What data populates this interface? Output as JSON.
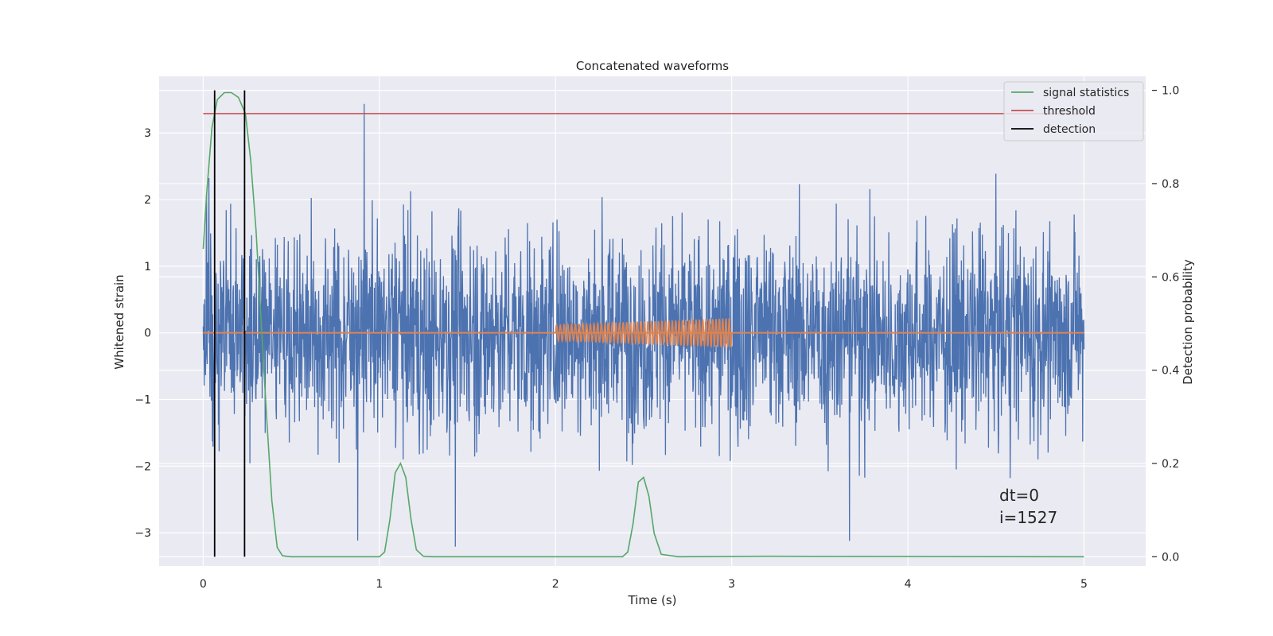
{
  "chart_data": {
    "type": "line",
    "title": "Concatenated waveforms",
    "xlabel": "Time (s)",
    "ylabel_left": "Whitened strain",
    "ylabel_right": "Detection probability",
    "xlim": [
      -0.25,
      5.35
    ],
    "ylim_left": [
      -3.5,
      3.85
    ],
    "ylim_right": [
      -0.02,
      1.03
    ],
    "x_ticks": [
      0,
      1,
      2,
      3,
      4,
      5
    ],
    "x_tick_labels": [
      "0",
      "1",
      "2",
      "3",
      "4",
      "5"
    ],
    "y_ticks_left": [
      -3,
      -2,
      -1,
      0,
      1,
      2,
      3
    ],
    "y_tick_labels_left": [
      "−3",
      "−2",
      "−1",
      "0",
      "1",
      "2",
      "3"
    ],
    "y_ticks_right": [
      0.0,
      0.2,
      0.4,
      0.6,
      0.8,
      1.0
    ],
    "y_tick_labels_right": [
      "0.0",
      "0.2",
      "0.4",
      "0.6",
      "0.8",
      "1.0"
    ],
    "grid": true,
    "legend_placement": "top-right",
    "legend": [
      "signal statistics",
      "threshold",
      "detection"
    ],
    "annotation": [
      "dt=0",
      "i=1527"
    ],
    "noise_series": {
      "axis": "left",
      "color": "#4c72b0",
      "x_range": [
        0,
        5
      ],
      "envelope_approx": [
        -3.4,
        3.5
      ]
    },
    "injected_signal": {
      "axis": "left",
      "color": "#dd8452",
      "baseline": 0,
      "chirp_x_range": [
        2.0,
        3.0
      ],
      "amplitude_start": 0.12,
      "amplitude_end": 0.22
    },
    "signal_statistics": {
      "axis": "right",
      "color": "#55a868",
      "x": [
        0.0,
        0.02,
        0.05,
        0.08,
        0.12,
        0.16,
        0.2,
        0.24,
        0.27,
        0.3,
        0.33,
        0.36,
        0.39,
        0.42,
        0.45,
        0.5,
        1.0,
        1.03,
        1.06,
        1.09,
        1.12,
        1.15,
        1.18,
        1.21,
        1.25,
        1.3,
        2.38,
        2.41,
        2.44,
        2.47,
        2.5,
        2.53,
        2.56,
        2.6,
        2.7,
        3.2,
        5.0
      ],
      "y": [
        0.66,
        0.78,
        0.92,
        0.98,
        0.995,
        0.995,
        0.985,
        0.95,
        0.85,
        0.7,
        0.5,
        0.3,
        0.12,
        0.02,
        0.002,
        0.0,
        0.0,
        0.01,
        0.08,
        0.18,
        0.2,
        0.17,
        0.08,
        0.015,
        0.001,
        0.0,
        0.0,
        0.01,
        0.07,
        0.16,
        0.17,
        0.13,
        0.05,
        0.005,
        0.0,
        0.001,
        0.0
      ]
    },
    "threshold": {
      "axis": "right",
      "color": "#c44e52",
      "value": 0.95,
      "x_range": [
        0,
        5
      ]
    },
    "detections": {
      "axis": "right",
      "color": "#000000",
      "x": [
        0.065,
        0.235
      ],
      "y_range": [
        0.0,
        1.0
      ]
    }
  }
}
